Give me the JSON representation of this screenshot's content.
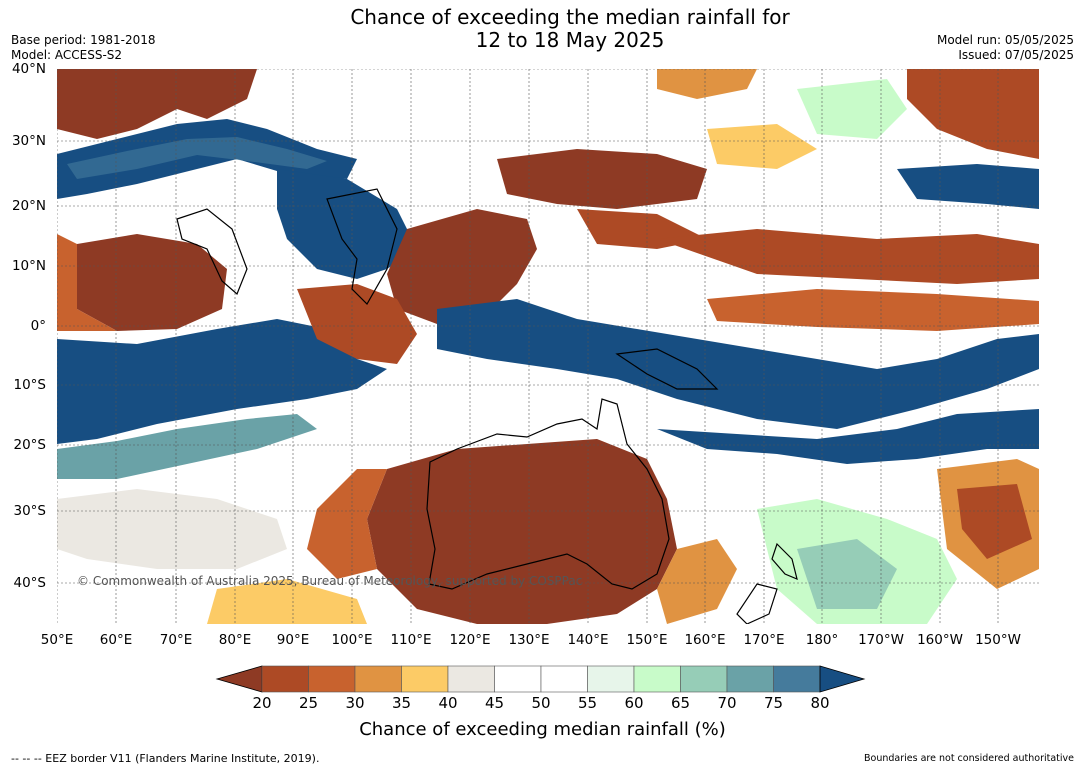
{
  "header": {
    "title_line1": "Chance of exceeding the median rainfall for",
    "title_line2": "12 to 18 May 2025",
    "base_period": "Base period: 1981-2018",
    "model": "Model: ACCESS-S2",
    "model_run": "Model run: 05/05/2025",
    "issued": "Issued: 07/05/2025"
  },
  "map": {
    "copyright": "© Commonwealth of Australia 2025, Bureau of Meteorology, supported by COSPPac",
    "lat_labels": [
      "40°N",
      "30°N",
      "20°N",
      "10°N",
      "0°",
      "10°S",
      "20°S",
      "30°S",
      "40°S"
    ],
    "lon_labels": [
      "50°E",
      "60°E",
      "70°E",
      "80°E",
      "90°E",
      "100°E",
      "110°E",
      "120°E",
      "130°E",
      "140°E",
      "150°E",
      "160°E",
      "170°E",
      "180°",
      "170°W",
      "160°W",
      "150°W"
    ]
  },
  "colorbar": {
    "ticks": [
      "20",
      "25",
      "30",
      "35",
      "40",
      "45",
      "50",
      "55",
      "60",
      "65",
      "70",
      "75",
      "80"
    ],
    "colors": [
      "#8e3a24",
      "#ad4a25",
      "#c8622e",
      "#e09342",
      "#fccb66",
      "#ebe8e2",
      "#ffffff",
      "#ffffff",
      "#e7f5ea",
      "#c8fbc9",
      "#96cdb7",
      "#6aa2a7",
      "#457b9c",
      "#174e82"
    ],
    "title": "Chance of exceeding median rainfall (%)"
  },
  "footer": {
    "eez_note": "--  --  -- EEZ border V11 (Flanders Marine Institute, 2019).",
    "disclaimer": "Boundaries are not considered authoritative"
  }
}
